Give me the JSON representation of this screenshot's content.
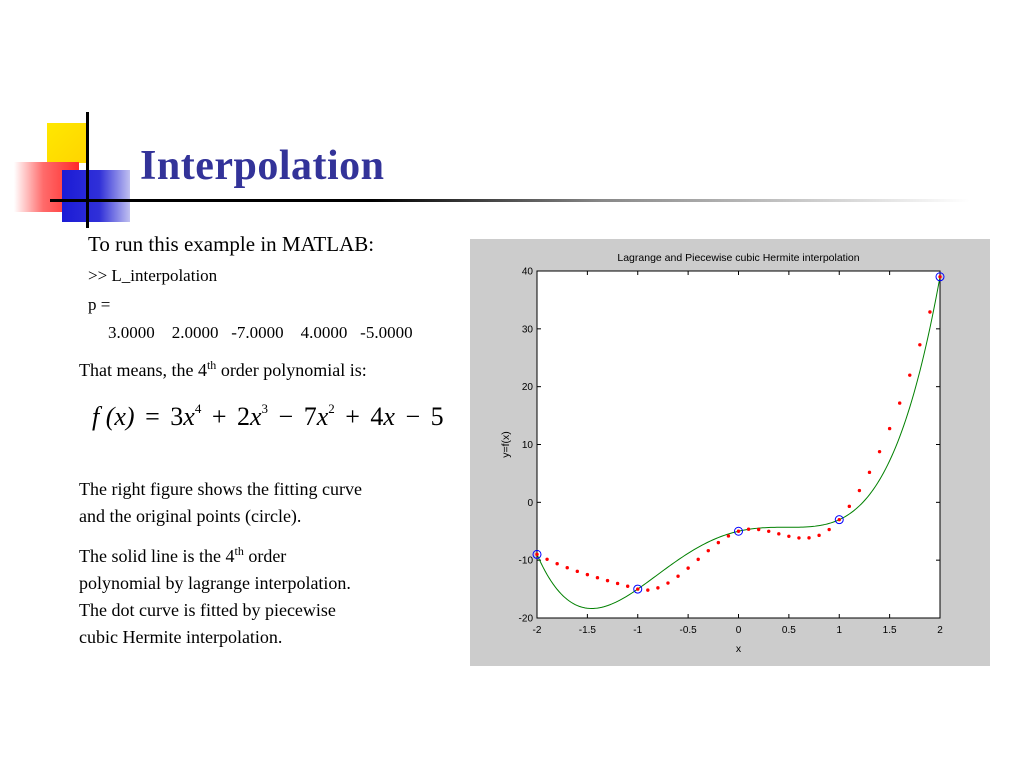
{
  "slide": {
    "title": "Interpolation",
    "intro": "To run this example in MATLAB:",
    "command": ">> L_interpolation",
    "p_label": "p =",
    "coefficients": "3.0000    2.0000   -7.0000    4.0000   -5.0000",
    "means_prefix": "That means, the 4",
    "means_sup": "th",
    "means_suffix": " order polynomial is:",
    "formula": {
      "f": "f",
      "arg": "(x)",
      "eq": "=",
      "t1c": "3",
      "t1x": "x",
      "t1e": "4",
      "op1": "+",
      "t2c": "2",
      "t2x": "x",
      "t2e": "3",
      "op2": "−",
      "t3c": "7",
      "t3x": "x",
      "t3e": "2",
      "op3": "+",
      "t4c": "4",
      "t4x": "x",
      "op4": "−",
      "t5c": "5"
    },
    "right_fig_line1": "The right figure shows the fitting curve",
    "right_fig_line2": "and the original points (circle).",
    "solid_line1_prefix": "The solid line is the 4",
    "solid_line1_sup": "th",
    "solid_line1_suffix": " order",
    "solid_line2": "polynomial by lagrange interpolation.",
    "solid_line3": "The dot curve is fitted by piecewise",
    "solid_line4": "cubic Hermite interpolation."
  },
  "chart_data": {
    "type": "line",
    "title": "Lagrange and Piecewise cubic Hermite interpolation",
    "xlabel": "x",
    "ylabel": "y=f(x)",
    "xlim": [
      -2,
      2
    ],
    "ylim": [
      -20,
      40
    ],
    "xticks": [
      -2,
      -1.5,
      -1,
      -0.5,
      0,
      0.5,
      1,
      1.5,
      2
    ],
    "xtick_labels": [
      "-2",
      "-1.5",
      "-1",
      "-0.5",
      "0",
      "0.5",
      "1",
      "1.5",
      "2"
    ],
    "yticks": [
      -20,
      -10,
      0,
      10,
      20,
      30,
      40
    ],
    "ytick_labels": [
      "-20",
      "-10",
      "0",
      "10",
      "20",
      "30",
      "40"
    ],
    "points": {
      "x": [
        -2,
        -1,
        0,
        1,
        2
      ],
      "y": [
        -9,
        -15,
        -5,
        -3,
        39
      ]
    },
    "lagrange_coeffs": [
      3,
      2,
      -7,
      4,
      -5
    ],
    "hermite_slopes": [
      -9,
      -5,
      6,
      21,
      63
    ],
    "hermite_dot_step": 0.1,
    "colors": {
      "lagrange": "#008000",
      "hermite": "#ff0000",
      "points": "#0000ff",
      "panel": "#cccccc",
      "axes_bg": "#ffffff"
    }
  }
}
